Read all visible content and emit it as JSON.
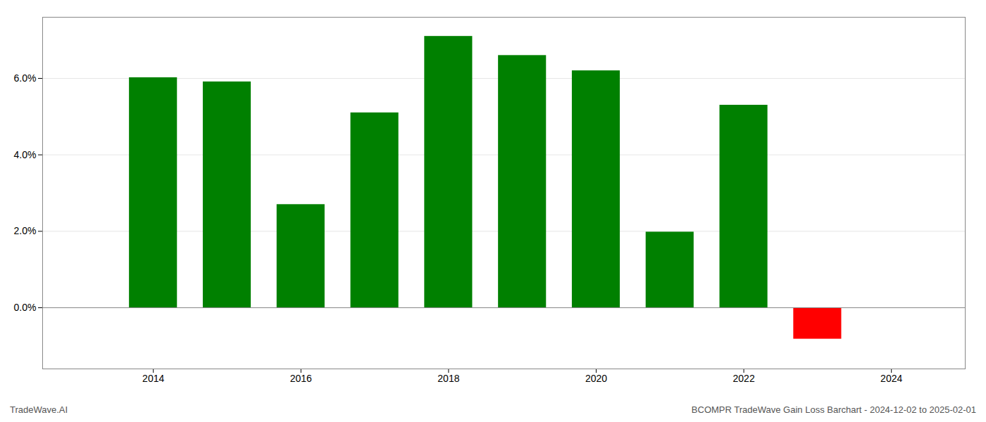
{
  "chart_data": {
    "type": "bar",
    "title": "BCOMPR TradeWave Gain Loss Barchart - 2024-12-02 to 2025-02-01",
    "annotations": [
      "TradeWave.AI"
    ],
    "x": [
      2014,
      2015,
      2016,
      2017,
      2018,
      2019,
      2020,
      2021,
      2022,
      2023
    ],
    "values": [
      0.0602,
      0.0591,
      0.027,
      0.051,
      0.071,
      0.066,
      0.062,
      0.0198,
      0.053,
      -0.0082
    ],
    "colors": [
      "#008000",
      "#008000",
      "#008000",
      "#008000",
      "#008000",
      "#008000",
      "#008000",
      "#008000",
      "#008000",
      "#ff0000"
    ],
    "xlim": [
      2012.5,
      2025.0
    ],
    "xticks": [
      2014,
      2016,
      2018,
      2020,
      2022,
      2024
    ],
    "ylim": [
      -0.016,
      0.076
    ],
    "yticks": [
      {
        "value": 0.0,
        "label": "0.0%"
      },
      {
        "value": 0.02,
        "label": "2.0%"
      },
      {
        "value": 0.04,
        "label": "4.0%"
      },
      {
        "value": 0.06,
        "label": "6.0%"
      }
    ],
    "grid": true
  }
}
